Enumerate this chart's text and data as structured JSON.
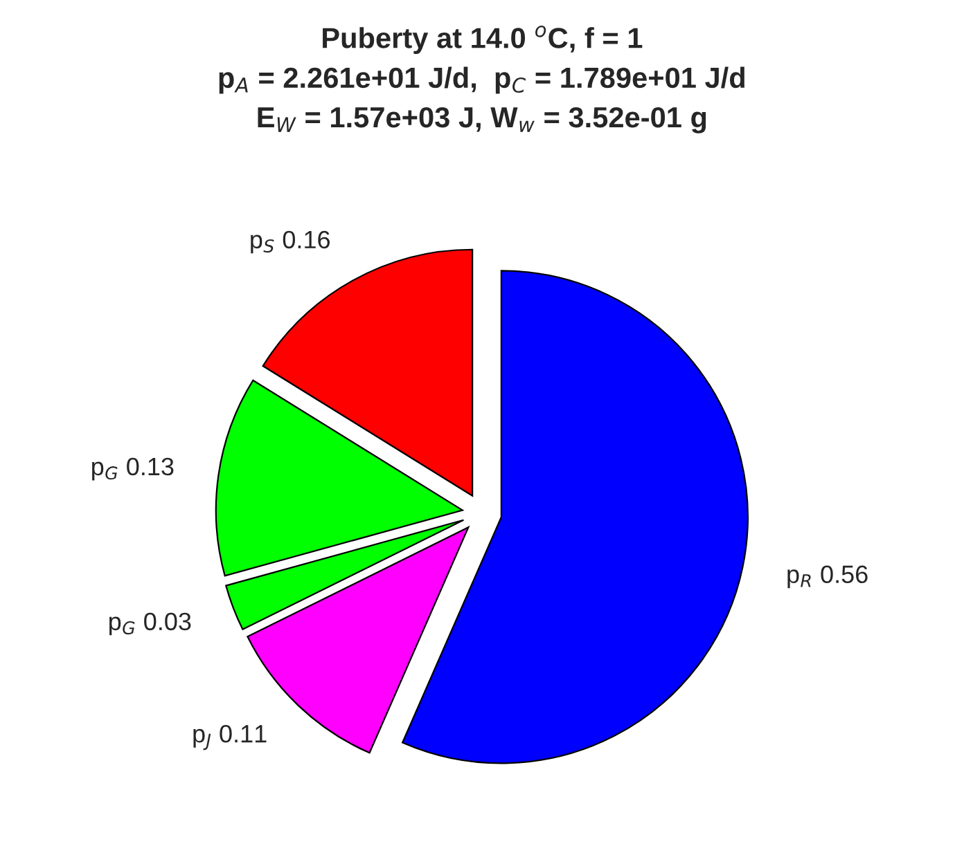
{
  "chart_data": {
    "type": "pie",
    "title": "Puberty at 14.0 $^{o}$C, f = 1\np$_{A}$ = 2.261e+01 J/d,  p$_{C}$ = 1.789e+01 J/d\nE$_{W}$ = 1.57e+03 J, W$_{w}$ = 3.52e-01 g",
    "categories": [
      "p$_{R}$",
      "p$_{J}$",
      "p$_{G}$",
      "p$_{G}$",
      "p$_{S}$"
    ],
    "values": [
      0.56,
      0.11,
      0.03,
      0.13,
      0.16
    ],
    "colors": [
      "#0000ff",
      "#ff00ff",
      "#00ff00",
      "#00ff00",
      "#ff0000"
    ],
    "data_labels": true,
    "legend": false
  }
}
